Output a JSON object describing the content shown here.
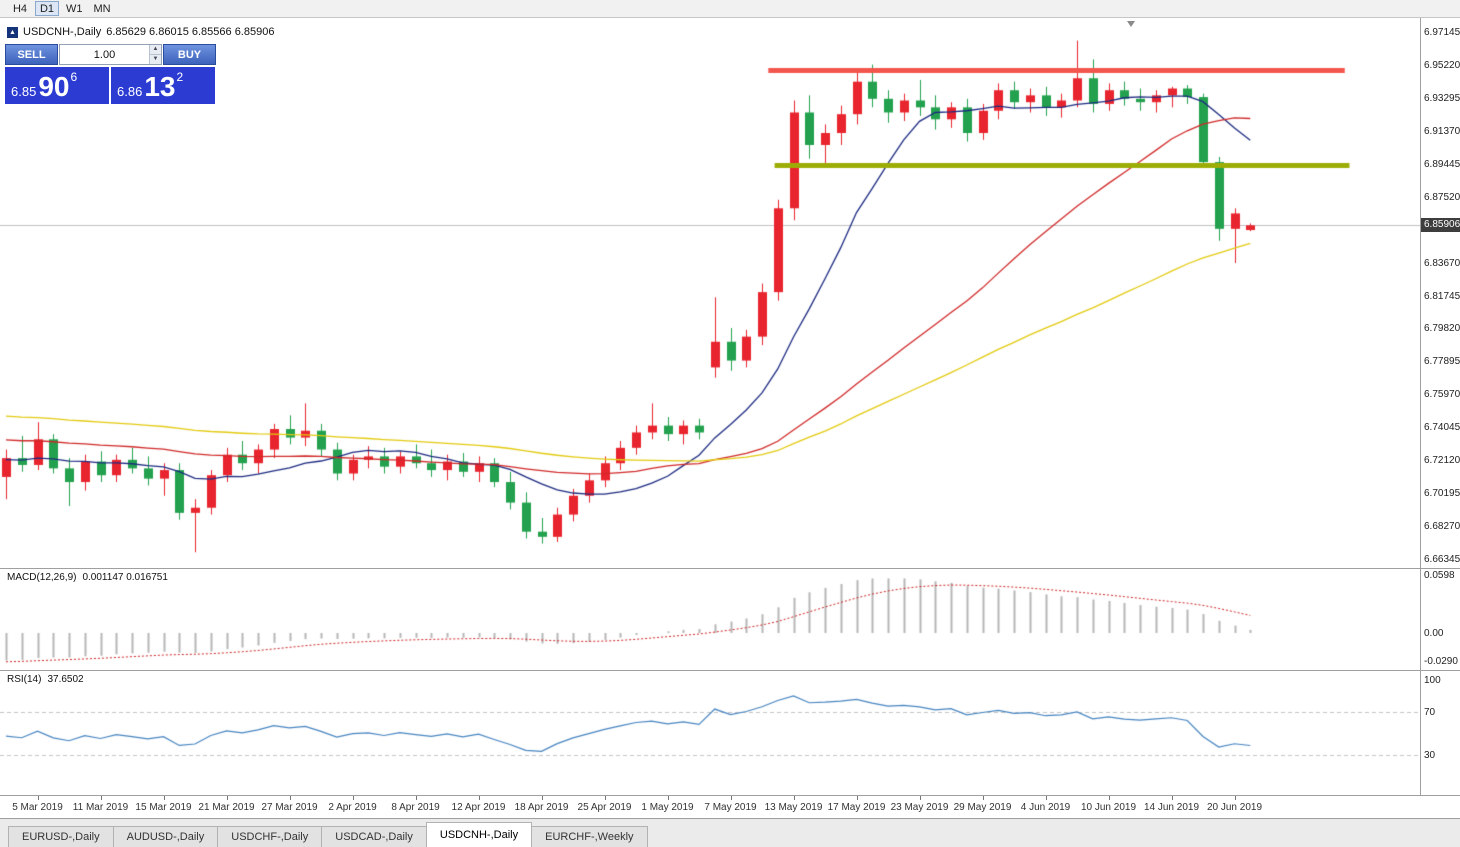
{
  "toolbar": {
    "timeframes": [
      {
        "label": "H4",
        "active": false
      },
      {
        "label": "D1",
        "active": true
      },
      {
        "label": "W1",
        "active": false
      },
      {
        "label": "MN",
        "active": false
      }
    ]
  },
  "chart_header": {
    "symbol_timeframe": "USDCNH-,Daily",
    "ohlc": "6.85629 6.86015 6.85566 6.85906"
  },
  "trade_panel": {
    "sell_label": "SELL",
    "buy_label": "BUY",
    "volume": "1.00",
    "bid": {
      "prefix": "6.85",
      "pips": "90",
      "sup": "6"
    },
    "ask": {
      "prefix": "6.86",
      "pips": "13",
      "sup": "2"
    }
  },
  "price_scale": {
    "labels": [
      "6.97145",
      "6.95220",
      "6.93295",
      "6.91370",
      "6.89445",
      "6.87520",
      "6.83670",
      "6.81745",
      "6.79820",
      "6.77895",
      "6.75970",
      "6.74045",
      "6.72120",
      "6.70195",
      "6.68270",
      "6.66345"
    ],
    "current": "6.85906"
  },
  "chart_data": {
    "type": "candlestick",
    "symbol": "USDCNH-",
    "timeframe": "Daily",
    "axis": {
      "price_max": 6.97145,
      "price_min": 6.66345
    },
    "colors": {
      "bull": "#e8242e",
      "bear": "#23a14e",
      "current_line": "#c0c0c0"
    },
    "dates": [
      "2019-03-01",
      "2019-03-04",
      "2019-03-05",
      "2019-03-06",
      "2019-03-07",
      "2019-03-08",
      "2019-03-11",
      "2019-03-12",
      "2019-03-13",
      "2019-03-14",
      "2019-03-15",
      "2019-03-18",
      "2019-03-19",
      "2019-03-20",
      "2019-03-21",
      "2019-03-22",
      "2019-03-25",
      "2019-03-26",
      "2019-03-27",
      "2019-03-28",
      "2019-03-29",
      "2019-04-01",
      "2019-04-02",
      "2019-04-03",
      "2019-04-04",
      "2019-04-05",
      "2019-04-08",
      "2019-04-09",
      "2019-04-10",
      "2019-04-11",
      "2019-04-12",
      "2019-04-15",
      "2019-04-16",
      "2019-04-17",
      "2019-04-18",
      "2019-04-22",
      "2019-04-23",
      "2019-04-24",
      "2019-04-25",
      "2019-04-26",
      "2019-04-29",
      "2019-04-30",
      "2019-05-01",
      "2019-05-02",
      "2019-05-03",
      "2019-05-06",
      "2019-05-07",
      "2019-05-08",
      "2019-05-09",
      "2019-05-10",
      "2019-05-13",
      "2019-05-14",
      "2019-05-15",
      "2019-05-16",
      "2019-05-17",
      "2019-05-20",
      "2019-05-21",
      "2019-05-22",
      "2019-05-23",
      "2019-05-24",
      "2019-05-27",
      "2019-05-28",
      "2019-05-29",
      "2019-05-30",
      "2019-05-31",
      "2019-06-03",
      "2019-06-04",
      "2019-06-05",
      "2019-06-06",
      "2019-06-07",
      "2019-06-10",
      "2019-06-11",
      "2019-06-12",
      "2019-06-13",
      "2019-06-14",
      "2019-06-17",
      "2019-06-18",
      "2019-06-19",
      "2019-06-20",
      "2019-06-21"
    ],
    "ohlc": [
      [
        6.712,
        6.728,
        6.699,
        6.723
      ],
      [
        6.723,
        6.736,
        6.715,
        6.719
      ],
      [
        6.719,
        6.744,
        6.716,
        6.734
      ],
      [
        6.734,
        6.737,
        6.714,
        6.717
      ],
      [
        6.717,
        6.723,
        6.695,
        6.709
      ],
      [
        6.709,
        6.725,
        6.704,
        6.721
      ],
      [
        6.721,
        6.727,
        6.709,
        6.713
      ],
      [
        6.713,
        6.725,
        6.709,
        6.722
      ],
      [
        6.722,
        6.729,
        6.714,
        6.717
      ],
      [
        6.717,
        6.724,
        6.707,
        6.711
      ],
      [
        6.711,
        6.72,
        6.701,
        6.716
      ],
      [
        6.716,
        6.72,
        6.687,
        6.691
      ],
      [
        6.691,
        6.699,
        6.668,
        6.694
      ],
      [
        6.694,
        6.716,
        6.69,
        6.713
      ],
      [
        6.713,
        6.729,
        6.709,
        6.725
      ],
      [
        6.725,
        6.733,
        6.716,
        6.72
      ],
      [
        6.72,
        6.731,
        6.714,
        6.728
      ],
      [
        6.728,
        6.743,
        6.723,
        6.74
      ],
      [
        6.74,
        6.748,
        6.731,
        6.735
      ],
      [
        6.735,
        6.755,
        6.73,
        6.739
      ],
      [
        6.739,
        6.743,
        6.724,
        6.728
      ],
      [
        6.728,
        6.732,
        6.71,
        6.714
      ],
      [
        6.714,
        6.725,
        6.71,
        6.722
      ],
      [
        6.722,
        6.73,
        6.717,
        6.724
      ],
      [
        6.724,
        6.729,
        6.714,
        6.718
      ],
      [
        6.718,
        6.727,
        6.714,
        6.724
      ],
      [
        6.724,
        6.731,
        6.717,
        6.72
      ],
      [
        6.72,
        6.728,
        6.712,
        6.716
      ],
      [
        6.716,
        6.725,
        6.71,
        6.721
      ],
      [
        6.721,
        6.726,
        6.712,
        6.715
      ],
      [
        6.715,
        6.724,
        6.709,
        6.72
      ],
      [
        6.72,
        6.723,
        6.706,
        6.709
      ],
      [
        6.709,
        6.715,
        6.693,
        6.697
      ],
      [
        6.697,
        6.703,
        6.676,
        6.68
      ],
      [
        6.68,
        6.688,
        6.673,
        6.677
      ],
      [
        6.677,
        6.694,
        6.674,
        6.69
      ],
      [
        6.69,
        6.705,
        6.686,
        6.701
      ],
      [
        6.701,
        6.714,
        6.697,
        6.71
      ],
      [
        6.71,
        6.724,
        6.706,
        6.72
      ],
      [
        6.72,
        6.733,
        6.716,
        6.729
      ],
      [
        6.729,
        6.742,
        6.725,
        6.738
      ],
      [
        6.738,
        6.755,
        6.734,
        6.742
      ],
      [
        6.742,
        6.747,
        6.733,
        6.737
      ],
      [
        6.737,
        6.745,
        6.731,
        6.742
      ],
      [
        6.742,
        6.746,
        6.734,
        6.738
      ],
      [
        6.776,
        6.817,
        6.77,
        6.791
      ],
      [
        6.791,
        6.799,
        6.774,
        6.78
      ],
      [
        6.78,
        6.798,
        6.776,
        6.794
      ],
      [
        6.794,
        6.825,
        6.789,
        6.82
      ],
      [
        6.82,
        6.874,
        6.815,
        6.869
      ],
      [
        6.869,
        6.932,
        6.862,
        6.925
      ],
      [
        6.925,
        6.935,
        6.898,
        6.906
      ],
      [
        6.906,
        6.918,
        6.895,
        6.913
      ],
      [
        6.913,
        6.929,
        6.906,
        6.924
      ],
      [
        6.924,
        6.949,
        6.918,
        6.943
      ],
      [
        6.943,
        6.953,
        6.928,
        6.933
      ],
      [
        6.933,
        6.938,
        6.919,
        6.925
      ],
      [
        6.925,
        6.936,
        6.92,
        6.932
      ],
      [
        6.932,
        6.944,
        6.923,
        6.928
      ],
      [
        6.928,
        6.935,
        6.915,
        6.921
      ],
      [
        6.921,
        6.931,
        6.916,
        6.928
      ],
      [
        6.928,
        6.933,
        6.908,
        6.913
      ],
      [
        6.913,
        6.93,
        6.909,
        6.926
      ],
      [
        6.926,
        6.942,
        6.921,
        6.938
      ],
      [
        6.938,
        6.943,
        6.927,
        6.931
      ],
      [
        6.931,
        6.939,
        6.925,
        6.935
      ],
      [
        6.935,
        6.94,
        6.923,
        6.928
      ],
      [
        6.928,
        6.936,
        6.922,
        6.932
      ],
      [
        6.932,
        6.967,
        6.928,
        6.945
      ],
      [
        6.945,
        6.956,
        6.925,
        6.93
      ],
      [
        6.93,
        6.942,
        6.926,
        6.938
      ],
      [
        6.938,
        6.943,
        6.929,
        6.933
      ],
      [
        6.933,
        6.939,
        6.926,
        6.931
      ],
      [
        6.931,
        6.938,
        6.925,
        6.935
      ],
      [
        6.935,
        6.94,
        6.928,
        6.939
      ],
      [
        6.939,
        6.941,
        6.93,
        6.934
      ],
      [
        6.934,
        6.936,
        6.893,
        6.896
      ],
      [
        6.896,
        6.899,
        6.85,
        6.857
      ],
      [
        6.857,
        6.869,
        6.837,
        6.866
      ],
      [
        6.85629,
        6.86015,
        6.85566,
        6.85906
      ]
    ],
    "x_ticks": [
      {
        "label": "5 Mar 2019",
        "index": 2
      },
      {
        "label": "11 Mar 2019",
        "index": 6
      },
      {
        "label": "15 Mar 2019",
        "index": 10
      },
      {
        "label": "21 Mar 2019",
        "index": 14
      },
      {
        "label": "27 Mar 2019",
        "index": 18
      },
      {
        "label": "2 Apr 2019",
        "index": 22
      },
      {
        "label": "8 Apr 2019",
        "index": 26
      },
      {
        "label": "12 Apr 2019",
        "index": 30
      },
      {
        "label": "18 Apr 2019",
        "index": 34
      },
      {
        "label": "25 Apr 2019",
        "index": 38
      },
      {
        "label": "1 May 2019",
        "index": 42
      },
      {
        "label": "7 May 2019",
        "index": 46
      },
      {
        "label": "13 May 2019",
        "index": 50
      },
      {
        "label": "17 May 2019",
        "index": 54
      },
      {
        "label": "23 May 2019",
        "index": 58
      },
      {
        "label": "29 May 2019",
        "index": 62
      },
      {
        "label": "4 Jun 2019",
        "index": 66
      },
      {
        "label": "10 Jun 2019",
        "index": 70
      },
      {
        "label": "14 Jun 2019",
        "index": 74
      },
      {
        "label": "20 Jun 2019",
        "index": 78
      }
    ],
    "moving_averages": [
      {
        "name": "ma-fast",
        "period": 10,
        "color": "#1c2a80",
        "seed": 6.722
      },
      {
        "name": "ma-medium",
        "period": 30,
        "color": "#d02828",
        "seed": 6.734
      },
      {
        "name": "ma-slow",
        "period": 50,
        "color": "#e2ca10",
        "seed": 6.748
      }
    ],
    "levels": [
      {
        "name": "resistance-line",
        "price": 6.95,
        "color": "#f2564d",
        "thickness": 5,
        "from_index": 48.4,
        "to_index": 85.0
      },
      {
        "name": "support-line",
        "price": 6.8944,
        "color": "#9dad07",
        "thickness": 5,
        "from_index": 48.8,
        "to_index": 85.3
      }
    ],
    "macd": {
      "name": "MACD(12,26,9)",
      "values_text": "0.001147 0.016751",
      "fast": 12,
      "slow": 26,
      "signal_period": 9,
      "scale_labels": [
        "0.0598",
        "0.00",
        "-0.0290"
      ],
      "hist_color": "#b6b6b6",
      "signal_color": "#cc2222",
      "seeds": {
        "ema12": 6.741,
        "ema26": 6.77,
        "signal": -0.03
      }
    },
    "rsi": {
      "name": "RSI(14)",
      "value_text": "37.6502",
      "period": 14,
      "color": "#4684c0",
      "levels": [
        70,
        30
      ],
      "scale_labels": [
        "100",
        "70",
        "30"
      ],
      "seeds": {
        "avg_gain": 0.0045,
        "avg_loss": 0.005
      }
    }
  },
  "tabs": [
    {
      "label": "EURUSD-,Daily",
      "active": false
    },
    {
      "label": "AUDUSD-,Daily",
      "active": false
    },
    {
      "label": "USDCHF-,Daily",
      "active": false
    },
    {
      "label": "USDCAD-,Daily",
      "active": false
    },
    {
      "label": "USDCNH-,Daily",
      "active": true
    },
    {
      "label": "EURCHF-,Weekly",
      "active": false
    }
  ]
}
